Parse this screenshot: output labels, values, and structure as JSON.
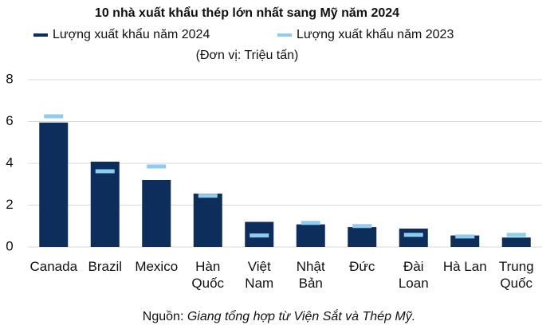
{
  "chart_data": {
    "type": "bar",
    "title": "10 nhà xuất khẩu thép lớn nhất sang Mỹ năm 2024",
    "subtitle": "(Đơn vị: Triệu tấn)",
    "categories": [
      [
        "Canada"
      ],
      [
        "Brazil"
      ],
      [
        "Mexico"
      ],
      [
        "Hàn",
        "Quốc"
      ],
      [
        "Việt",
        "Nam"
      ],
      [
        "Nhật",
        "Bản"
      ],
      [
        "Đức"
      ],
      [
        "Đài",
        "Loan"
      ],
      [
        "Hà Lan"
      ],
      [
        "Trung",
        "Quốc"
      ]
    ],
    "series": [
      {
        "name": "Lượng xuất khẩu năm 2024",
        "color": "#0d2d5a",
        "style": "bar",
        "values": [
          5.95,
          4.08,
          3.2,
          2.55,
          1.2,
          1.08,
          0.95,
          0.88,
          0.55,
          0.45
        ]
      },
      {
        "name": "Lượng xuất khẩu năm 2023",
        "color": "#8ecdf0",
        "style": "marker",
        "values": [
          6.25,
          3.62,
          3.85,
          2.45,
          0.55,
          1.15,
          1.0,
          0.58,
          0.5,
          0.58
        ]
      }
    ],
    "ylim": [
      0,
      8
    ],
    "yticks": [
      0,
      2,
      4,
      6,
      8
    ],
    "grid": true,
    "source_label": "Nguồn:",
    "source_text": "Giang tổng hợp từ Viện Sắt và Thép Mỹ."
  }
}
